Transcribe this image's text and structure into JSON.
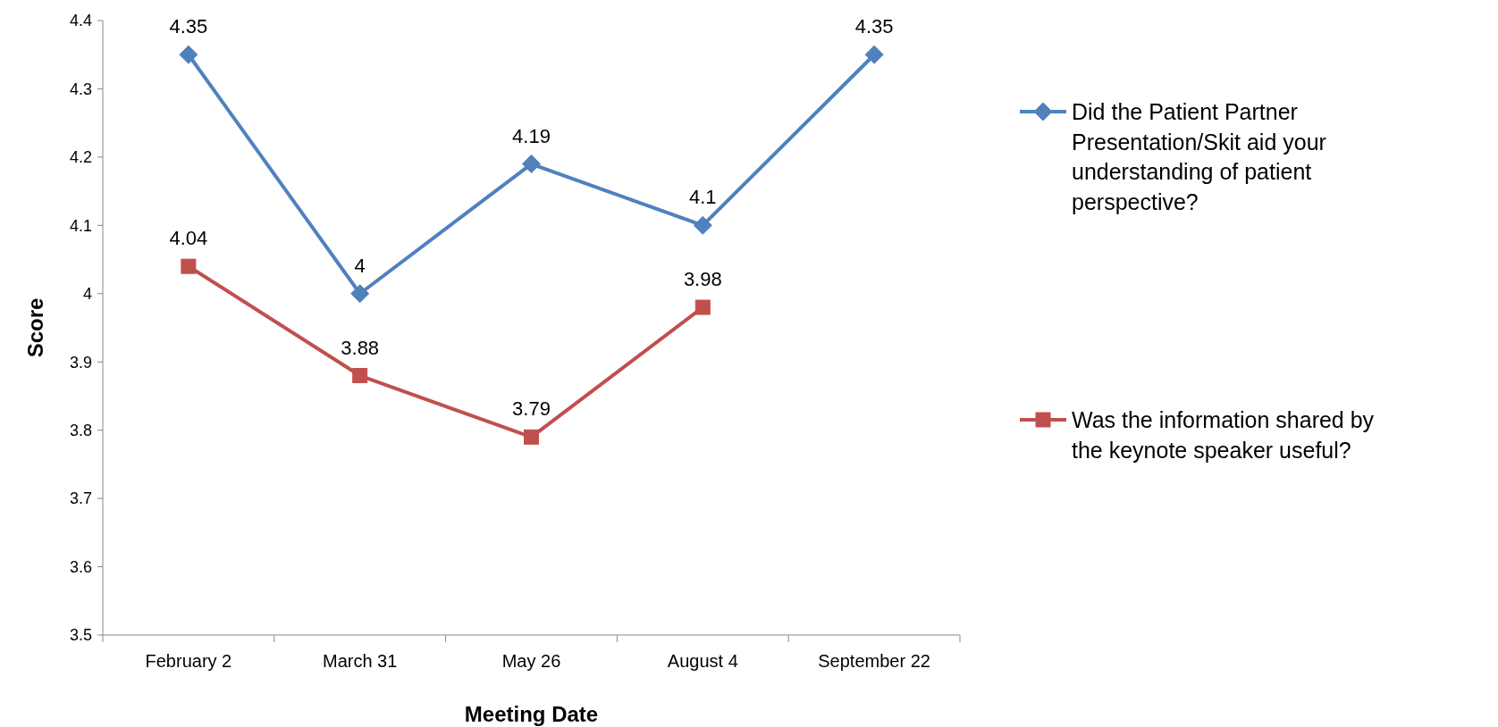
{
  "chart_data": {
    "type": "line",
    "xlabel": "Meeting Date",
    "ylabel": "Score",
    "categories": [
      "February 2",
      "March 31",
      "May 26",
      "August 4",
      "September 22"
    ],
    "series": [
      {
        "name": "Did the Patient Partner Presentation/Skit aid your understanding of patient perspective?",
        "color": "#4f81bd",
        "marker": "diamond",
        "values": [
          4.35,
          4,
          4.19,
          4.1,
          4.35
        ]
      },
      {
        "name": "Was the information shared by the keynote speaker useful?",
        "color": "#c0504d",
        "marker": "square",
        "values": [
          4.04,
          3.88,
          3.79,
          3.98,
          null
        ]
      }
    ],
    "ylim": [
      3.5,
      4.4
    ],
    "yticks": [
      3.5,
      3.6,
      3.7,
      3.8,
      3.9,
      4,
      4.1,
      4.2,
      4.3,
      4.4
    ],
    "data_labels": true,
    "legend": "right",
    "grid": false
  }
}
